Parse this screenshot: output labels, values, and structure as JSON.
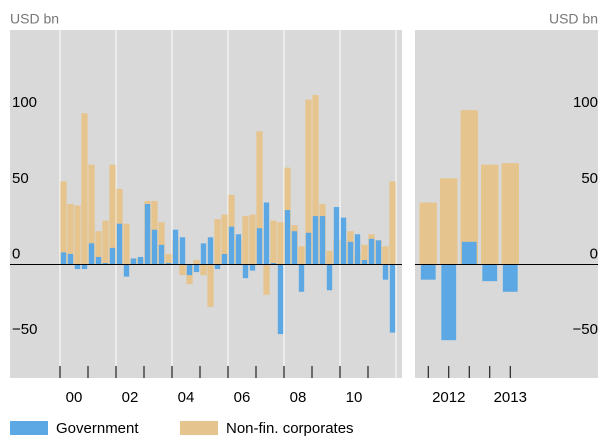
{
  "chart_data": [
    {
      "type": "bar",
      "y_label": "USD bn",
      "categories": [
        "00",
        null,
        null,
        null,
        null,
        null,
        null,
        null,
        "02",
        null,
        null,
        null,
        null,
        null,
        null,
        null,
        "04",
        null,
        null,
        null,
        null,
        null,
        null,
        null,
        "06",
        null,
        null,
        null,
        null,
        null,
        null,
        null,
        "08",
        null,
        null,
        null,
        null,
        null,
        null,
        null,
        "10",
        null,
        null,
        null,
        null,
        null,
        null,
        null
      ],
      "series": [
        {
          "name": "Non-fin. corporates",
          "color": "#e6c48e",
          "values": [
            55,
            40,
            39,
            100,
            66,
            22,
            29,
            66,
            50,
            27,
            4,
            4,
            42,
            42,
            28,
            7,
            16,
            -7,
            -13,
            3,
            -7,
            -28,
            30,
            33,
            46,
            16,
            32,
            33,
            88,
            -20,
            29,
            28,
            64,
            26,
            12,
            109,
            112,
            40,
            9,
            16,
            17,
            22,
            7,
            13,
            20,
            16,
            12,
            55
          ]
        },
        {
          "name": "Government",
          "color": "#5ba8e4",
          "values": [
            8,
            7,
            -3,
            -3,
            14,
            5,
            1,
            11,
            27,
            -8,
            4,
            5,
            40,
            23,
            13,
            1,
            23,
            18,
            -7,
            -5,
            14,
            18,
            -3,
            7,
            25,
            20,
            -9,
            -4,
            24,
            41,
            1,
            -46,
            36,
            22,
            -18,
            21,
            32,
            32,
            -17,
            38,
            31,
            15,
            20,
            3,
            17,
            16,
            -10,
            -45
          ]
        }
      ],
      "ylim": [
        -75,
        155
      ],
      "yticks": [
        {
          "value": -50,
          "label": "−50"
        },
        0,
        50,
        100
      ]
    },
    {
      "type": "bar",
      "y_label": "USD bn",
      "categories": [
        null,
        "2012",
        null,
        null,
        "2013"
      ],
      "series": [
        {
          "name": "Non-fin. corporates",
          "color": "#e6c48e",
          "values": [
            41,
            57,
            102,
            66,
            67
          ]
        },
        {
          "name": "Government",
          "color": "#5ba8e4",
          "values": [
            -10,
            -50,
            15,
            -11,
            -18
          ]
        }
      ],
      "ylim": [
        -75,
        155
      ],
      "yticks": [
        {
          "value": -50,
          "label": "−50"
        },
        0,
        50,
        100
      ]
    }
  ]
}
